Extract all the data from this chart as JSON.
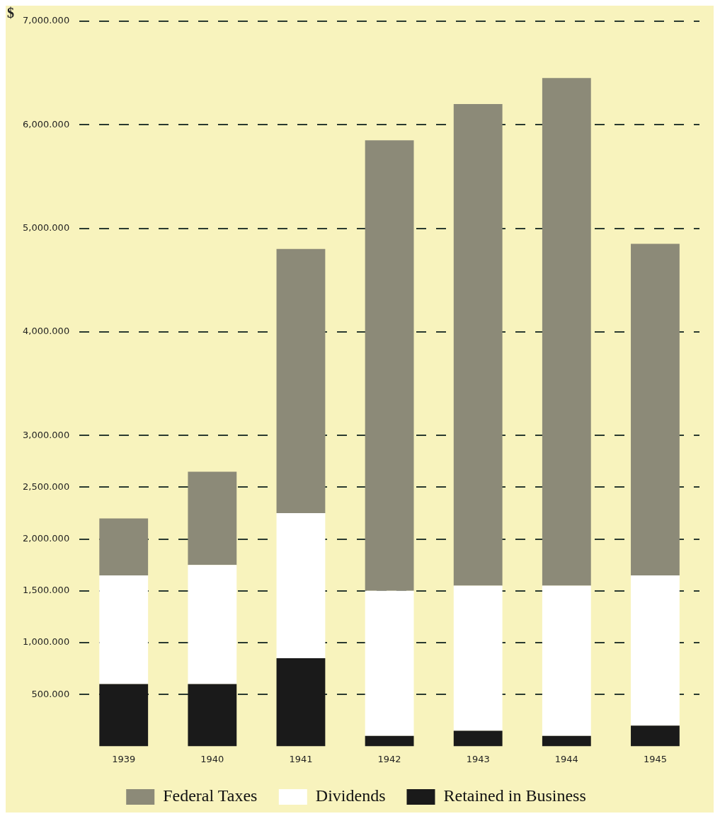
{
  "chart_data": {
    "type": "bar",
    "stacked": true,
    "ylabel": "$",
    "categories": [
      "1939",
      "1940",
      "1941",
      "1942",
      "1943",
      "1944",
      "1945"
    ],
    "series": [
      {
        "name": "Retained in Business",
        "color": "#1a1a1a",
        "values": [
          600,
          600,
          850,
          100,
          150,
          100,
          200
        ]
      },
      {
        "name": "Dividends",
        "color": "#ffffff",
        "values": [
          1050,
          1150,
          1400,
          1400,
          1400,
          1450,
          1450
        ]
      },
      {
        "name": "Federal Taxes",
        "color": "#8c8a78",
        "values": [
          550,
          900,
          2550,
          4350,
          4650,
          4900,
          3200
        ]
      }
    ],
    "ylim": [
      0,
      7000
    ],
    "yticks": [
      {
        "value": 500,
        "label": "500.000"
      },
      {
        "value": 1000,
        "label": "1,000.000"
      },
      {
        "value": 1500,
        "label": "1,500.000"
      },
      {
        "value": 2000,
        "label": "2,000.000"
      },
      {
        "value": 2500,
        "label": "2,500.000"
      },
      {
        "value": 3000,
        "label": "3,000.000"
      },
      {
        "value": 4000,
        "label": "4,000.000"
      },
      {
        "value": 5000,
        "label": "5,000.000"
      },
      {
        "value": 6000,
        "label": "6,000.000"
      },
      {
        "value": 7000,
        "label": "7,000.000"
      }
    ],
    "grid": "y",
    "legend": "bottom"
  }
}
